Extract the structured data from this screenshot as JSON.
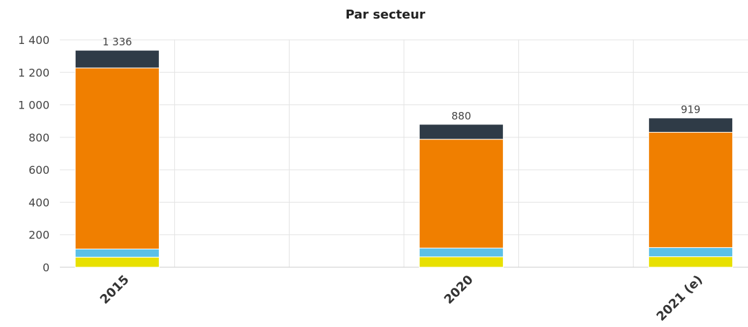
{
  "chart_data": {
    "type": "bar",
    "stacked": true,
    "title": "Par secteur",
    "categories": [
      "2015",
      "",
      "",
      "2020",
      "",
      "2021 (e)"
    ],
    "series": [
      {
        "color": "#e8e000",
        "values": [
          62,
          null,
          null,
          64,
          null,
          65
        ]
      },
      {
        "color": "#5bc0e8",
        "values": [
          50,
          null,
          null,
          54,
          null,
          56
        ]
      },
      {
        "color": "#f07f00",
        "values": [
          1115,
          null,
          null,
          670,
          null,
          710
        ]
      },
      {
        "color": "#2f3b47",
        "values": [
          109,
          null,
          null,
          92,
          null,
          88
        ]
      }
    ],
    "totals": [
      1336,
      null,
      null,
      880,
      null,
      919
    ],
    "total_labels": [
      "1 336",
      "",
      "",
      "880",
      "",
      "919"
    ],
    "ylim": [
      0,
      1400
    ],
    "yticks": [
      0,
      200,
      400,
      600,
      800,
      1000,
      1200,
      1400
    ],
    "ytick_labels": [
      "0",
      "200",
      "400",
      "600",
      "800",
      "1 000",
      "1 200",
      "1 400"
    ],
    "xlabel": "",
    "ylabel": "",
    "grid": true,
    "legend": "none"
  }
}
